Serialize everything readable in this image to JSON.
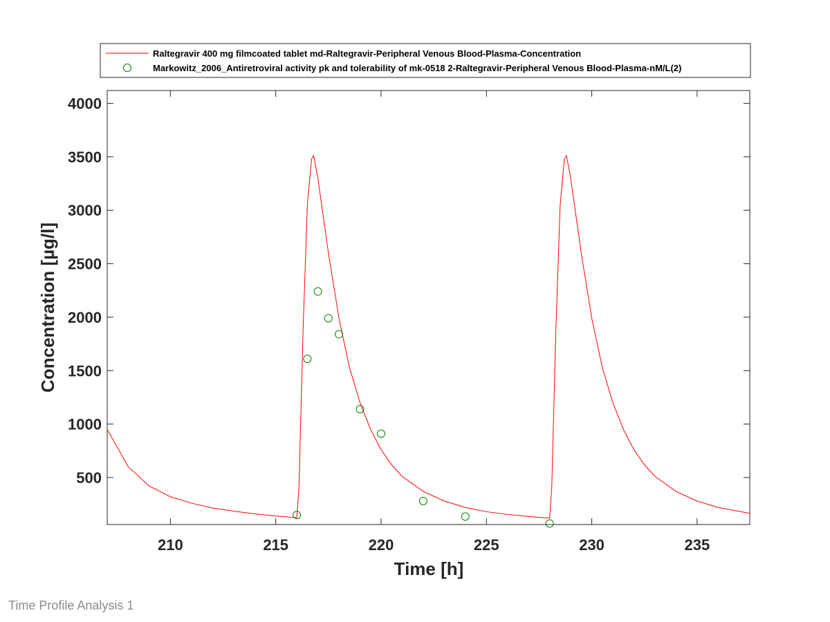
{
  "footer": {
    "label": "Time Profile Analysis 1"
  },
  "chart_data": {
    "type": "line",
    "title": "",
    "xlabel": "Time [h]",
    "ylabel": "Concentration [µg/l]",
    "xlim": [
      207,
      237.5
    ],
    "ylim": [
      60,
      4120
    ],
    "xticks": [
      210,
      215,
      220,
      225,
      230,
      235
    ],
    "yticks": [
      500,
      1000,
      1500,
      2000,
      2500,
      3000,
      3500,
      4000
    ],
    "grid": false,
    "legend_position": "top-outside",
    "series": [
      {
        "name": "Raltegravir 400 mg filmcoated tablet md-Raltegravir-Peripheral Venous Blood-Plasma-Concentration",
        "kind": "line",
        "color": "#ff0000",
        "x": [
          207,
          208,
          209,
          210,
          211,
          212,
          213,
          214,
          215,
          216,
          216.1,
          216.3,
          216.5,
          216.7,
          216.8,
          217,
          217.5,
          218,
          218.5,
          219,
          219.5,
          220,
          220.5,
          221,
          222,
          223,
          224,
          225,
          226,
          227,
          228,
          228.1,
          228.3,
          228.5,
          228.7,
          228.8,
          229,
          229.5,
          230,
          230.5,
          231,
          231.5,
          232,
          232.5,
          233,
          234,
          235,
          236,
          237.5
        ],
        "y": [
          950,
          600,
          420,
          320,
          260,
          215,
          185,
          160,
          140,
          125,
          400,
          1900,
          3050,
          3480,
          3510,
          3300,
          2600,
          1990,
          1530,
          1200,
          950,
          760,
          620,
          510,
          370,
          280,
          220,
          180,
          155,
          135,
          120,
          400,
          1900,
          3050,
          3480,
          3510,
          3300,
          2600,
          1990,
          1530,
          1200,
          950,
          760,
          620,
          510,
          370,
          280,
          220,
          165
        ]
      },
      {
        "name": "Markowitz_2006_Antiretroviral activity pk and tolerability of mk-0518 2-Raltegravir-Peripheral Venous Blood-Plasma-nM/L(2)",
        "kind": "scatter",
        "marker": "circle-open",
        "color": "#008000",
        "x": [
          216,
          216.5,
          217,
          217.5,
          218,
          219,
          220,
          222,
          224,
          228
        ],
        "y": [
          150,
          1610,
          2240,
          1990,
          1840,
          1140,
          910,
          280,
          135,
          70
        ]
      }
    ]
  }
}
